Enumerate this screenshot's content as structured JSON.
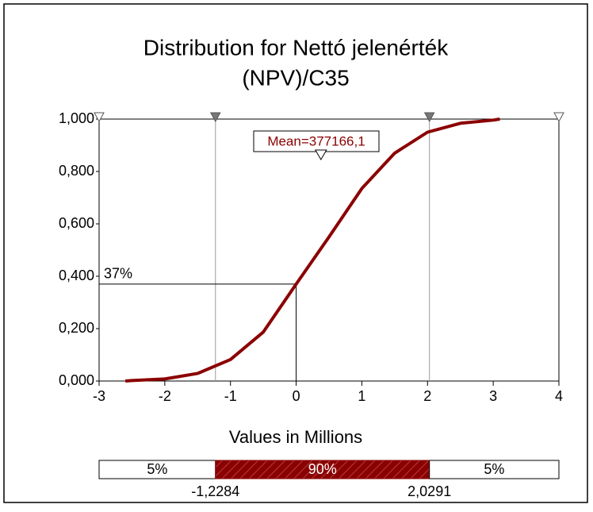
{
  "chart_data": {
    "type": "line",
    "title": "Distribution for Nettó jelenérték",
    "subtitle": "(NPV)/C35",
    "x_label": "Values in Millions",
    "x": [
      -2.6,
      -2.5,
      -2,
      -1.5,
      -1,
      -0.5,
      0,
      0.5,
      1,
      1.5,
      2,
      2.5,
      3,
      3.1
    ],
    "series": [
      {
        "color": "#8b0000",
        "values": [
          0,
          0.002,
          0.008,
          0.029,
          0.082,
          0.187,
          0.37,
          0.55,
          0.735,
          0.87,
          0.95,
          0.984,
          0.996,
          1
        ]
      }
    ],
    "xlim": [
      -3,
      4
    ],
    "xticks": [
      -3,
      -2,
      -1,
      0,
      1,
      2,
      3,
      4
    ],
    "ylim": [
      0,
      1
    ],
    "yticks": [
      {
        "value": 0,
        "label": "0,000"
      },
      {
        "value": 0.2,
        "label": "0,200"
      },
      {
        "value": 0.4,
        "label": "0,400"
      },
      {
        "value": 0.6,
        "label": "0,600"
      },
      {
        "value": 0.8,
        "label": "0,800"
      },
      {
        "value": 1,
        "label": "1,000"
      }
    ],
    "mean": {
      "value": 0.3771661,
      "label": "Mean=377166,1"
    },
    "crosshair": {
      "x": 0,
      "y": 0.37,
      "label": "37%"
    },
    "delimiters": [
      {
        "value": -1.2284,
        "label": "-1,2284"
      },
      {
        "value": 2.0291,
        "label": "2,0291"
      }
    ],
    "bar": {
      "values": [
        5,
        90,
        5
      ],
      "value_labels": [
        "5%",
        "90%",
        "5%"
      ],
      "color": "#8b0000"
    }
  }
}
